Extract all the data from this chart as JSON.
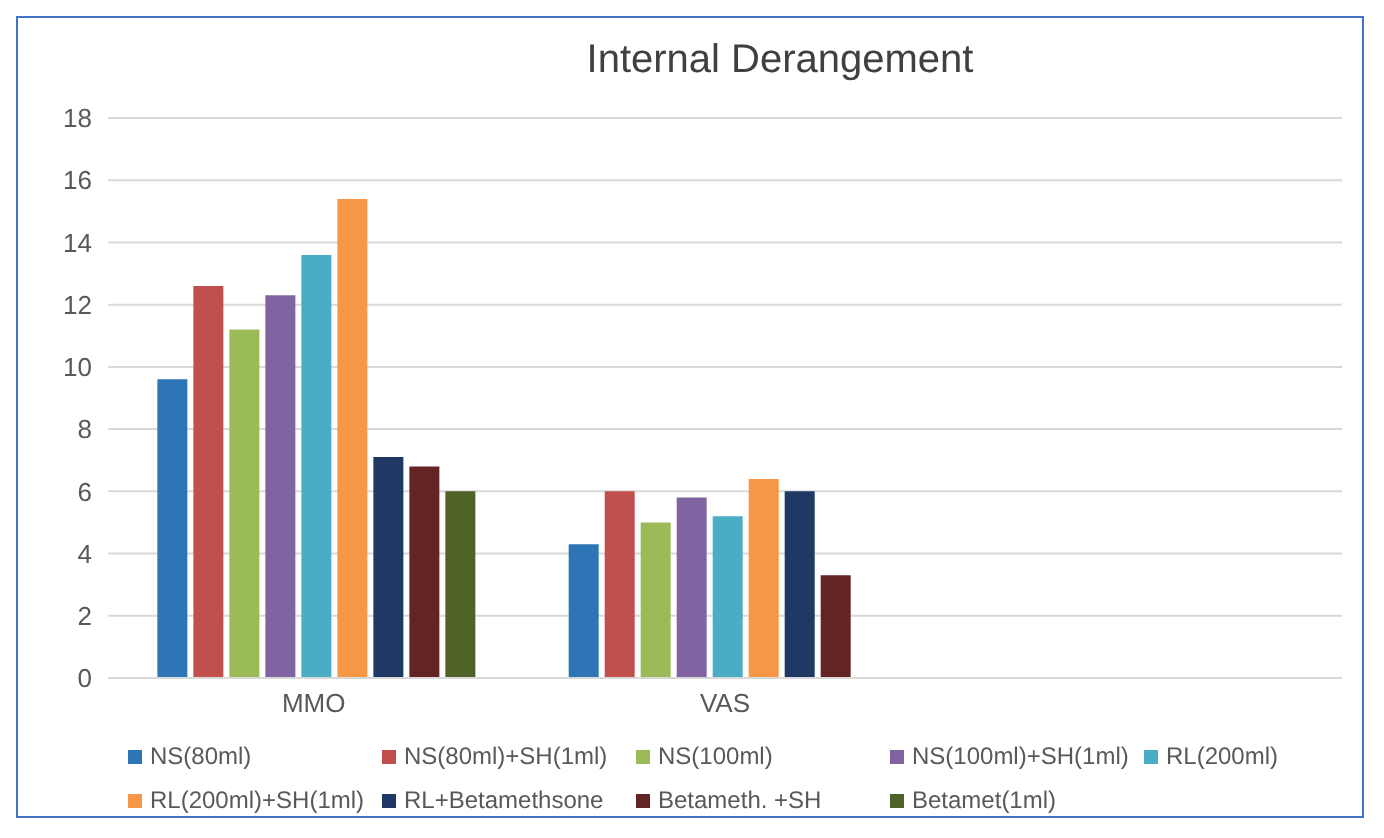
{
  "chart_data": {
    "type": "bar",
    "title": "Internal Derangement",
    "categories": [
      "MMO",
      "VAS",
      null
    ],
    "series": [
      {
        "name": "NS(80ml)",
        "color": "#2e75b6",
        "values": [
          9.6,
          4.3,
          null
        ]
      },
      {
        "name": "NS(80ml)+SH(1ml)",
        "color": "#c0504d",
        "values": [
          12.6,
          6.0,
          null
        ]
      },
      {
        "name": "NS(100ml)",
        "color": "#9bbb59",
        "values": [
          11.2,
          5.0,
          null
        ]
      },
      {
        "name": "NS(100ml)+SH(1ml)",
        "color": "#8064a2",
        "values": [
          12.3,
          5.8,
          null
        ]
      },
      {
        "name": "RL(200ml)",
        "color": "#4bacc6",
        "values": [
          13.6,
          5.2,
          null
        ]
      },
      {
        "name": "RL(200ml)+SH(1ml)",
        "color": "#f79646",
        "values": [
          15.4,
          6.4,
          null
        ]
      },
      {
        "name": "RL+Betamethsone",
        "color": "#1f3864",
        "values": [
          7.1,
          6.0,
          null
        ]
      },
      {
        "name": "Betameth. +SH",
        "color": "#632523",
        "values": [
          6.8,
          3.3,
          null
        ]
      },
      {
        "name": "Betamet(1ml)",
        "color": "#4f6228",
        "values": [
          6.0,
          null,
          null
        ]
      }
    ],
    "ylim": [
      0,
      18
    ],
    "yticks": [
      0,
      2,
      4,
      6,
      8,
      10,
      12,
      14,
      16,
      18
    ],
    "grid": "y",
    "legend": "bottom"
  }
}
